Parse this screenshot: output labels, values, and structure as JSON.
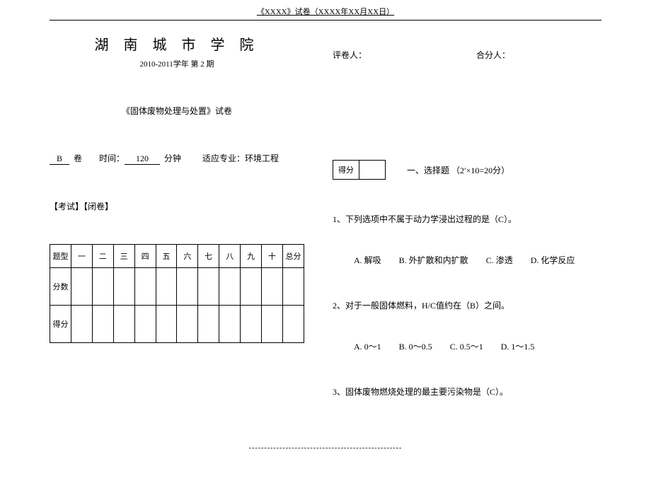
{
  "page_header": "《XXXX》试卷（XXXX年XX月XX日）",
  "school_title": "湖 南 城 市 学 院",
  "term": "2010-2011学年   第 2 期",
  "exam_title": "《固体废物处理与处置》试卷",
  "paper_letter_prefix": "",
  "paper_letter": "B",
  "paper_letter_suffix": "卷",
  "time_label_prefix": "时间：",
  "time_value": "120",
  "time_unit": "分钟",
  "major_label": "适应专业：环境工程",
  "exam_mode": "【考试】【闭卷】",
  "score_table": {
    "row1_head": "题型",
    "columns": [
      "一",
      "二",
      "三",
      "四",
      "五",
      "六",
      "七",
      "八",
      "九",
      "十",
      "总分"
    ],
    "row2_head": "分数",
    "row3_head": "得分"
  },
  "grader_label": "评卷人：",
  "cograder_label": "合分人：",
  "mini_box_label": "得分",
  "section1_label": "一、选择题        （2′×10=20分）",
  "q1": "1、下列选项中不属于动力学浸出过程的是（C）。",
  "q1_opts": {
    "a": "A. 解吸",
    "b": "B. 外扩散和内扩散",
    "c": "C. 渗透",
    "d": "D. 化学反应"
  },
  "q2": "2、对于一般固体燃料，H/C值约在（B）之间。",
  "q2_opts": {
    "a": "A.  0～1",
    "b": "B.  0～0.5",
    "c": "C.  0.5～1",
    "d": "D.  1～1.5"
  },
  "q3": "3、固体废物燃烧处理的最主要污染物是（C）。",
  "footer_dash": "--------------------------------------------------"
}
